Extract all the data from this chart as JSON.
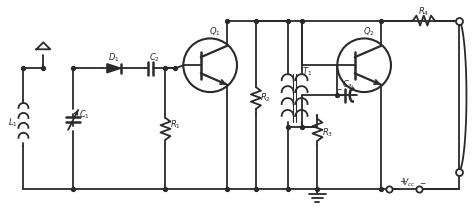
{
  "background_color": "#ffffff",
  "line_color": "#2a2a2a",
  "line_width": 1.3,
  "figsize": [
    4.74,
    2.08
  ],
  "dpi": 100,
  "labels": {
    "D1": "D_1",
    "C2": "C_2",
    "L1": "L_1",
    "C1": "C_1",
    "R1": "R_1",
    "Q1": "Q_1",
    "R2": "R_2",
    "T1": "T_1",
    "Q2": "Q_2",
    "C3": "C_3",
    "R3": "R_3",
    "R4": "R_4",
    "Vcc": "V_{cc}"
  }
}
